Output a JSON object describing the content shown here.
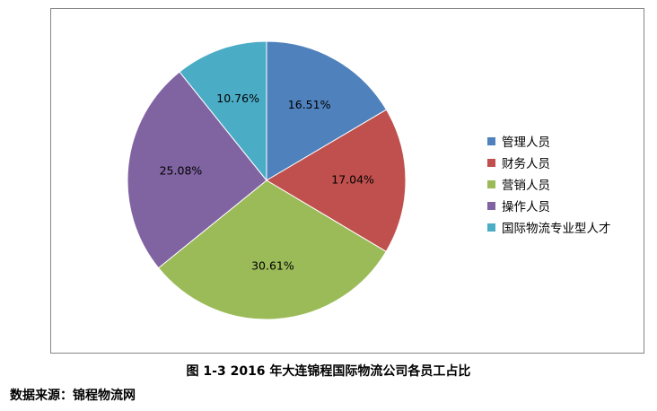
{
  "chart_data": {
    "type": "pie",
    "title": "",
    "categories": [
      "管理人员",
      "财务人员",
      "营销人员",
      "操作人员",
      "国际物流专业型人才"
    ],
    "values": [
      16.51,
      17.04,
      30.61,
      25.08,
      10.76
    ],
    "labels": [
      "16.51%",
      "17.04%",
      "30.61%",
      "25.08%",
      "10.76%"
    ],
    "colors": [
      "#4F81BD",
      "#C0504D",
      "#9BBB59",
      "#8064A2",
      "#4BACC6"
    ],
    "legend_position": "right"
  },
  "caption": "图 1-3 2016 年大连锦程国际物流公司各员工占比",
  "source": "数据来源：锦程物流网"
}
